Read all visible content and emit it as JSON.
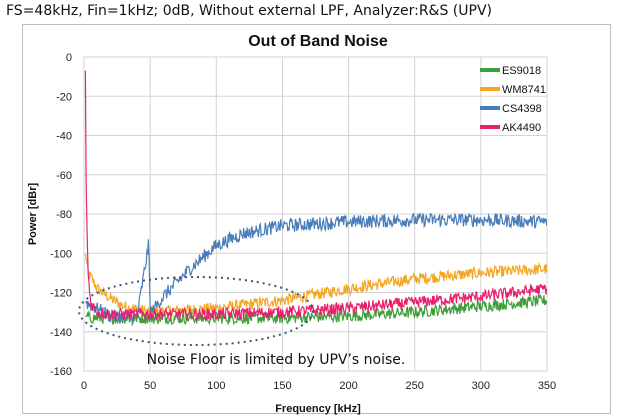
{
  "header": "FS=48kHz, Fin=1kHz; 0dB,  Without external LPF,  Analyzer:R&S (UPV)",
  "chart_data": {
    "type": "line",
    "title": "Out of Band Noise",
    "xlabel": "Frequency [kHz]",
    "ylabel": "Power [dBr]",
    "xlim": [
      0,
      350
    ],
    "ylim": [
      -160,
      0
    ],
    "xticks": [
      "0",
      "50",
      "100",
      "150",
      "200",
      "250",
      "300",
      "350"
    ],
    "yticks": [
      "0",
      "-20",
      "-40",
      "-60",
      "-80",
      "-100",
      "-120",
      "-140",
      "-160"
    ],
    "grid": true,
    "legend_position": "top-right",
    "annotation": "Noise Floor is limited by UPV’s noise.",
    "series": [
      {
        "name": "ES9018",
        "color": "#3f9e3a",
        "x": [
          1,
          5,
          20,
          50,
          100,
          150,
          200,
          250,
          300,
          350
        ],
        "y": [
          -132,
          -133,
          -133,
          -133,
          -133,
          -133,
          -132,
          -130,
          -127,
          -124
        ]
      },
      {
        "name": "WM8741",
        "color": "#f5a623",
        "x": [
          1,
          3,
          5,
          10,
          20,
          30,
          50,
          100,
          150,
          200,
          250,
          300,
          350
        ],
        "y": [
          -100,
          -110,
          -112,
          -118,
          -123,
          -127,
          -130,
          -128,
          -124,
          -118,
          -113,
          -110,
          -108
        ]
      },
      {
        "name": "CS4398",
        "color": "#4a7ebb",
        "x": [
          1,
          20,
          40,
          49,
          50,
          60,
          80,
          100,
          120,
          150,
          200,
          250,
          300,
          350
        ],
        "y": [
          -125,
          -132,
          -133,
          -95,
          -131,
          -122,
          -108,
          -96,
          -90,
          -86,
          -84,
          -83,
          -83,
          -84
        ]
      },
      {
        "name": "AK4490",
        "color": "#e8216e",
        "x": [
          1,
          1.5,
          3,
          5,
          10,
          20,
          50,
          100,
          150,
          200,
          250,
          300,
          350
        ],
        "y": [
          0,
          -60,
          -110,
          -125,
          -130,
          -131,
          -131,
          -131,
          -130,
          -128,
          -125,
          -122,
          -118
        ]
      }
    ]
  }
}
